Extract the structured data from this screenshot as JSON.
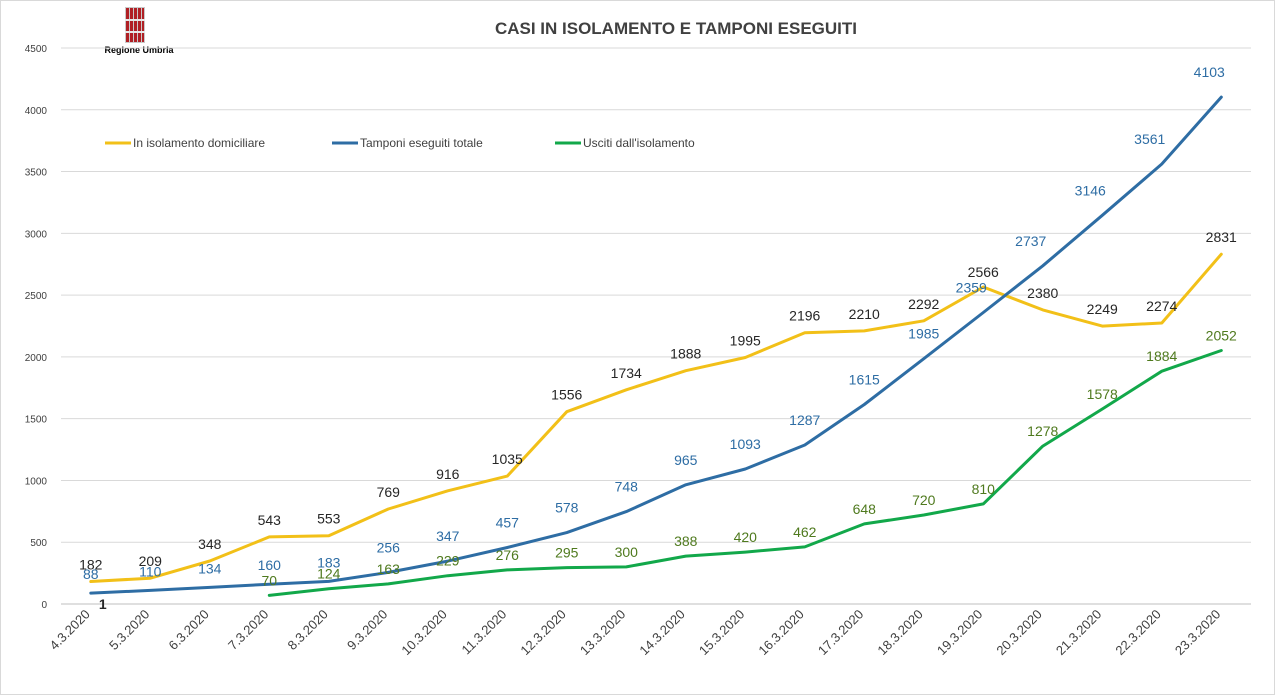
{
  "logo": {
    "label": "Regione Umbria"
  },
  "chart_data": {
    "type": "line",
    "title": "CASI IN ISOLAMENTO E TAMPONI ESEGUITI",
    "xlabel": "",
    "ylabel": "",
    "ylim": [
      0,
      4500
    ],
    "yticks": [
      "0",
      "500",
      "1000",
      "1500",
      "2000",
      "2500",
      "3000",
      "3500",
      "4000",
      "4500"
    ],
    "grid": true,
    "legend_position": "top-left",
    "categories": [
      "4.3.2020",
      "5.3.2020",
      "6.3.2020",
      "7.3.2020",
      "8.3.2020",
      "9.3.2020",
      "10.3.2020",
      "11.3.2020",
      "12.3.2020",
      "13.3.2020",
      "14.3.2020",
      "15.3.2020",
      "16.3.2020",
      "17.3.2020",
      "18.3.2020",
      "19.3.2020",
      "20.3.2020",
      "21.3.2020",
      "22.3.2020",
      "23.3.2020"
    ],
    "series": [
      {
        "name": "In isolamento domiciliare",
        "color": "#f2c018",
        "label_color": "#262626",
        "values": [
          182,
          209,
          348,
          543,
          553,
          769,
          916,
          1035,
          1556,
          1734,
          1888,
          1995,
          2196,
          2210,
          2292,
          2566,
          2380,
          2249,
          2274,
          2831
        ],
        "labels": [
          "182",
          "209",
          "348",
          "543",
          "553",
          "769",
          "916",
          "1035",
          "1556",
          "1734",
          "1888",
          "1995",
          "2196",
          "2210",
          "2292",
          "2566",
          "2380",
          "2249",
          "2274",
          "2831"
        ]
      },
      {
        "name": "Tamponi eseguiti totale",
        "color": "#2e6da4",
        "label_color": "#2e6da4",
        "values": [
          88,
          110,
          134,
          160,
          183,
          256,
          347,
          457,
          578,
          748,
          965,
          1093,
          1287,
          1615,
          1985,
          2359,
          2737,
          3146,
          3561,
          4103
        ],
        "labels": [
          "88",
          "110",
          "134",
          "160",
          "183",
          "256",
          "347",
          "457",
          "578",
          "748",
          "965",
          "1093",
          "1287",
          "1615",
          "1985",
          "2359",
          "2737",
          "3146",
          "3561",
          "4103"
        ]
      },
      {
        "name": "Usciti dall'isolamento",
        "color": "#12a84a",
        "label_color": "#4f7a1e",
        "values": [
          null,
          null,
          null,
          70,
          124,
          163,
          229,
          276,
          295,
          300,
          388,
          420,
          462,
          648,
          720,
          810,
          1278,
          1578,
          1884,
          2052
        ],
        "labels": [
          "",
          "",
          "",
          "70",
          "124",
          "163",
          "229",
          "276",
          "295",
          "300",
          "388",
          "420",
          "462",
          "648",
          "720",
          "810",
          "1278",
          "1578",
          "1884",
          "2052"
        ]
      }
    ],
    "annotations": [
      {
        "text": "1",
        "category": "4.3.2020"
      }
    ]
  }
}
